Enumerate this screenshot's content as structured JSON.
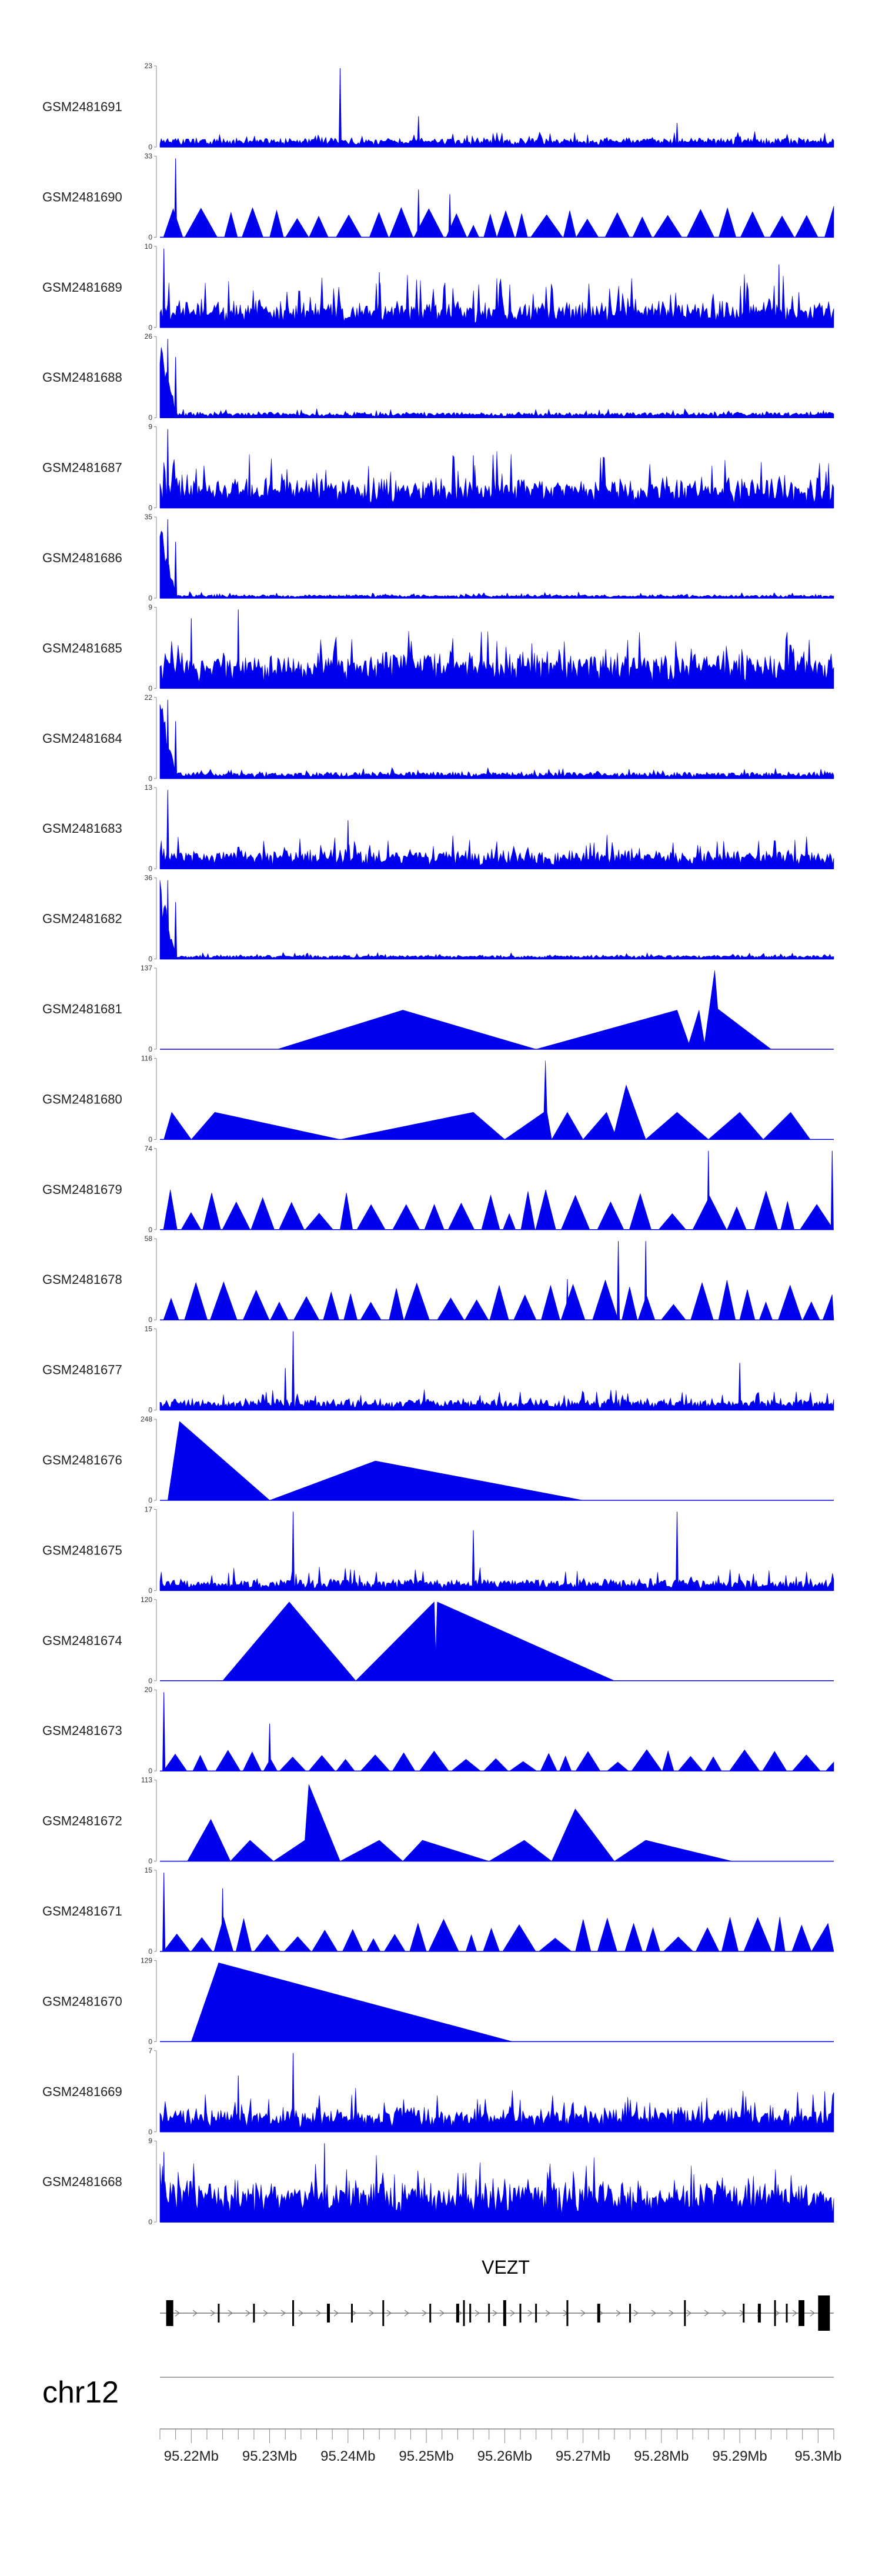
{
  "chart_data": {
    "type": "area",
    "title": "",
    "chromosome": "chr12",
    "gene": "VEZT",
    "x_range_bp": [
      95216000,
      95302000
    ],
    "x_ticks_bp": [
      95220000,
      95230000,
      95240000,
      95250000,
      95260000,
      95270000,
      95280000,
      95290000,
      95300000
    ],
    "x_tick_labels": [
      "95.22Mb",
      "95.23Mb",
      "95.24Mb",
      "95.25Mb",
      "95.26Mb",
      "95.27Mb",
      "95.28Mb",
      "95.29Mb",
      "95.3Mb"
    ],
    "colors": {
      "coverage": "#0000ee",
      "axis": "#888888",
      "gene": "#000000"
    },
    "tracks": [
      {
        "name": "GSM2481691",
        "ymax": 23,
        "style": "dense",
        "baseline": 1.5,
        "noise": 3,
        "spikes": [
          [
            95239000,
            23
          ],
          [
            95249000,
            9
          ],
          [
            95282000,
            7
          ]
        ]
      },
      {
        "name": "GSM2481690",
        "ymax": 33,
        "style": "triangles",
        "baseline": 0,
        "noise": 12,
        "spikes": [
          [
            95218000,
            33
          ],
          [
            95249000,
            20
          ],
          [
            95253000,
            18
          ]
        ]
      },
      {
        "name": "GSM2481689",
        "ymax": 10,
        "style": "dense",
        "baseline": 1.5,
        "noise": 5,
        "spikes": [
          [
            95216500,
            10
          ],
          [
            95244000,
            7
          ],
          [
            95295000,
            8
          ]
        ]
      },
      {
        "name": "GSM2481688",
        "ymax": 26,
        "style": "early",
        "baseline": 1,
        "noise": 2,
        "spikes": [
          [
            95217000,
            26
          ],
          [
            95218000,
            20
          ]
        ]
      },
      {
        "name": "GSM2481687",
        "ymax": 9,
        "style": "dense",
        "baseline": 1.5,
        "noise": 5,
        "spikes": [
          [
            95217000,
            9
          ],
          [
            95256000,
            6
          ]
        ]
      },
      {
        "name": "GSM2481686",
        "ymax": 35,
        "style": "early",
        "baseline": 0.8,
        "noise": 2,
        "spikes": [
          [
            95217000,
            35
          ],
          [
            95218000,
            25
          ]
        ]
      },
      {
        "name": "GSM2481685",
        "ymax": 9,
        "style": "dense",
        "baseline": 2,
        "noise": 5,
        "spikes": [
          [
            95220000,
            8
          ],
          [
            95226000,
            9
          ]
        ]
      },
      {
        "name": "GSM2481684",
        "ymax": 22,
        "style": "early",
        "baseline": 1,
        "noise": 2,
        "spikes": [
          [
            95217000,
            22
          ],
          [
            95218000,
            16
          ]
        ]
      },
      {
        "name": "GSM2481683",
        "ymax": 13,
        "style": "dense",
        "baseline": 1.5,
        "noise": 4,
        "spikes": [
          [
            95217000,
            13
          ],
          [
            95240000,
            8
          ]
        ]
      },
      {
        "name": "GSM2481682",
        "ymax": 36,
        "style": "early",
        "baseline": 1,
        "noise": 2,
        "spikes": [
          [
            95217000,
            36
          ],
          [
            95218000,
            26
          ]
        ]
      },
      {
        "name": "GSM2481681",
        "ymax": 137,
        "style": "poly",
        "points": [
          [
            95231000,
            0
          ],
          [
            95247000,
            68
          ],
          [
            95264000,
            0
          ],
          [
            95282000,
            68
          ],
          [
            95283500,
            10
          ],
          [
            95284800,
            68
          ],
          [
            95285500,
            10
          ],
          [
            95286800,
            137
          ],
          [
            95287200,
            70
          ],
          [
            95294000,
            0
          ]
        ]
      },
      {
        "name": "GSM2481680",
        "ymax": 116,
        "style": "poly",
        "points": [
          [
            95216500,
            0
          ],
          [
            95217500,
            40
          ],
          [
            95220000,
            0
          ],
          [
            95223000,
            40
          ],
          [
            95239000,
            0
          ],
          [
            95256000,
            40
          ],
          [
            95260000,
            0
          ],
          [
            95265000,
            40
          ],
          [
            95265200,
            116
          ],
          [
            95265400,
            40
          ],
          [
            95266000,
            0
          ],
          [
            95268000,
            40
          ],
          [
            95270000,
            0
          ],
          [
            95273000,
            40
          ],
          [
            95274000,
            10
          ],
          [
            95275500,
            80
          ],
          [
            95278000,
            0
          ],
          [
            95282000,
            40
          ],
          [
            95286000,
            0
          ],
          [
            95290000,
            40
          ],
          [
            95293000,
            0
          ],
          [
            95296500,
            40
          ],
          [
            95299000,
            0
          ]
        ]
      },
      {
        "name": "GSM2481679",
        "ymax": 74,
        "style": "triangles",
        "baseline": 0,
        "noise": 35,
        "spikes": [
          [
            95286000,
            74
          ],
          [
            95301800,
            74
          ]
        ]
      },
      {
        "name": "GSM2481678",
        "ymax": 58,
        "style": "triangles",
        "baseline": 0,
        "noise": 28,
        "spikes": [
          [
            95274500,
            58
          ],
          [
            95278000,
            58
          ],
          [
            95268000,
            30
          ]
        ]
      },
      {
        "name": "GSM2481677",
        "ymax": 15,
        "style": "dense",
        "baseline": 1,
        "noise": 3,
        "spikes": [
          [
            95233000,
            15
          ],
          [
            95232000,
            8
          ],
          [
            95290000,
            9
          ]
        ]
      },
      {
        "name": "GSM2481676",
        "ymax": 248,
        "style": "poly",
        "points": [
          [
            95217000,
            0
          ],
          [
            95218500,
            248
          ],
          [
            95230000,
            0
          ],
          [
            95243500,
            124
          ],
          [
            95270000,
            0
          ]
        ]
      },
      {
        "name": "GSM2481675",
        "ymax": 17,
        "style": "dense",
        "baseline": 1,
        "noise": 4,
        "spikes": [
          [
            95233000,
            17
          ],
          [
            95256000,
            13
          ],
          [
            95282000,
            17
          ]
        ]
      },
      {
        "name": "GSM2481674",
        "ymax": 120,
        "style": "poly",
        "points": [
          [
            95224000,
            0
          ],
          [
            95232500,
            120
          ],
          [
            95241000,
            0
          ],
          [
            95251000,
            120
          ],
          [
            95251200,
            40
          ],
          [
            95251400,
            120
          ],
          [
            95274000,
            0
          ]
        ]
      },
      {
        "name": "GSM2481673",
        "ymax": 20,
        "style": "triangles",
        "baseline": 0,
        "noise": 5,
        "spikes": [
          [
            95216500,
            20
          ],
          [
            95230000,
            12
          ]
        ]
      },
      {
        "name": "GSM2481672",
        "ymax": 113,
        "style": "poly",
        "points": [
          [
            95219500,
            0
          ],
          [
            95222500,
            60
          ],
          [
            95225000,
            0
          ],
          [
            95227500,
            30
          ],
          [
            95230500,
            0
          ],
          [
            95234500,
            30
          ],
          [
            95235000,
            110
          ],
          [
            95239000,
            0
          ],
          [
            95244000,
            30
          ],
          [
            95247000,
            0
          ],
          [
            95249500,
            30
          ],
          [
            95258000,
            0
          ],
          [
            95262500,
            30
          ],
          [
            95266000,
            0
          ],
          [
            95269000,
            75
          ],
          [
            95274000,
            0
          ],
          [
            95278000,
            30
          ],
          [
            95289000,
            0
          ]
        ]
      },
      {
        "name": "GSM2481671",
        "ymax": 15,
        "style": "triangles",
        "baseline": 0,
        "noise": 6,
        "spikes": [
          [
            95216500,
            15
          ],
          [
            95224000,
            12
          ]
        ]
      },
      {
        "name": "GSM2481670",
        "ymax": 129,
        "style": "poly",
        "points": [
          [
            95220000,
            0
          ],
          [
            95223500,
            129
          ],
          [
            95261000,
            0
          ]
        ]
      },
      {
        "name": "GSM2481669",
        "ymax": 7,
        "style": "dense",
        "baseline": 1,
        "noise": 3,
        "spikes": [
          [
            95233000,
            7
          ],
          [
            95226000,
            5
          ]
        ]
      },
      {
        "name": "GSM2481668",
        "ymax": 9,
        "style": "dense",
        "baseline": 2.5,
        "noise": 5,
        "spikes": [
          [
            95237000,
            9
          ],
          [
            95216500,
            8
          ]
        ]
      }
    ]
  }
}
